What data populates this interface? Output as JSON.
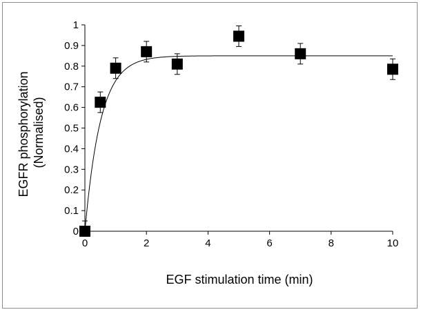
{
  "chart_data": {
    "type": "scatter",
    "xlabel": "EGF stimulation time (min)",
    "ylabel": [
      "EGFR phosphorylation",
      "(Normalised)"
    ],
    "xlim": [
      0,
      10
    ],
    "ylim": [
      0,
      1
    ],
    "x_ticks": [
      0,
      2,
      4,
      6,
      8,
      10
    ],
    "y_ticks": [
      0,
      0.1,
      0.2,
      0.3,
      0.4,
      0.5,
      0.6,
      0.7,
      0.8,
      0.9,
      1
    ],
    "x_tick_labels": [
      "0",
      "2",
      "4",
      "6",
      "8",
      "10"
    ],
    "y_tick_labels": [
      "0",
      "0.1",
      "0.2",
      "0.3",
      "0.4",
      "0.5",
      "0.6",
      "0.7",
      "0.8",
      "0.9",
      "1"
    ],
    "grid": false,
    "legend": "none",
    "marker_color": "#000000",
    "series": [
      {
        "x": [
          0,
          0.5,
          1,
          2,
          3,
          5,
          7,
          10
        ],
        "y": [
          0.0,
          0.625,
          0.79,
          0.87,
          0.81,
          0.945,
          0.86,
          0.785
        ],
        "err": [
          0.05,
          0.05,
          0.05,
          0.05,
          0.05,
          0.05,
          0.05,
          0.05
        ]
      }
    ],
    "fit_curve": {
      "type": "exponential",
      "formula": "y = 0.85 * (1 - exp(-1.95 * x))",
      "plateau": 0.85,
      "rate": 1.95,
      "color": "#000000"
    }
  }
}
